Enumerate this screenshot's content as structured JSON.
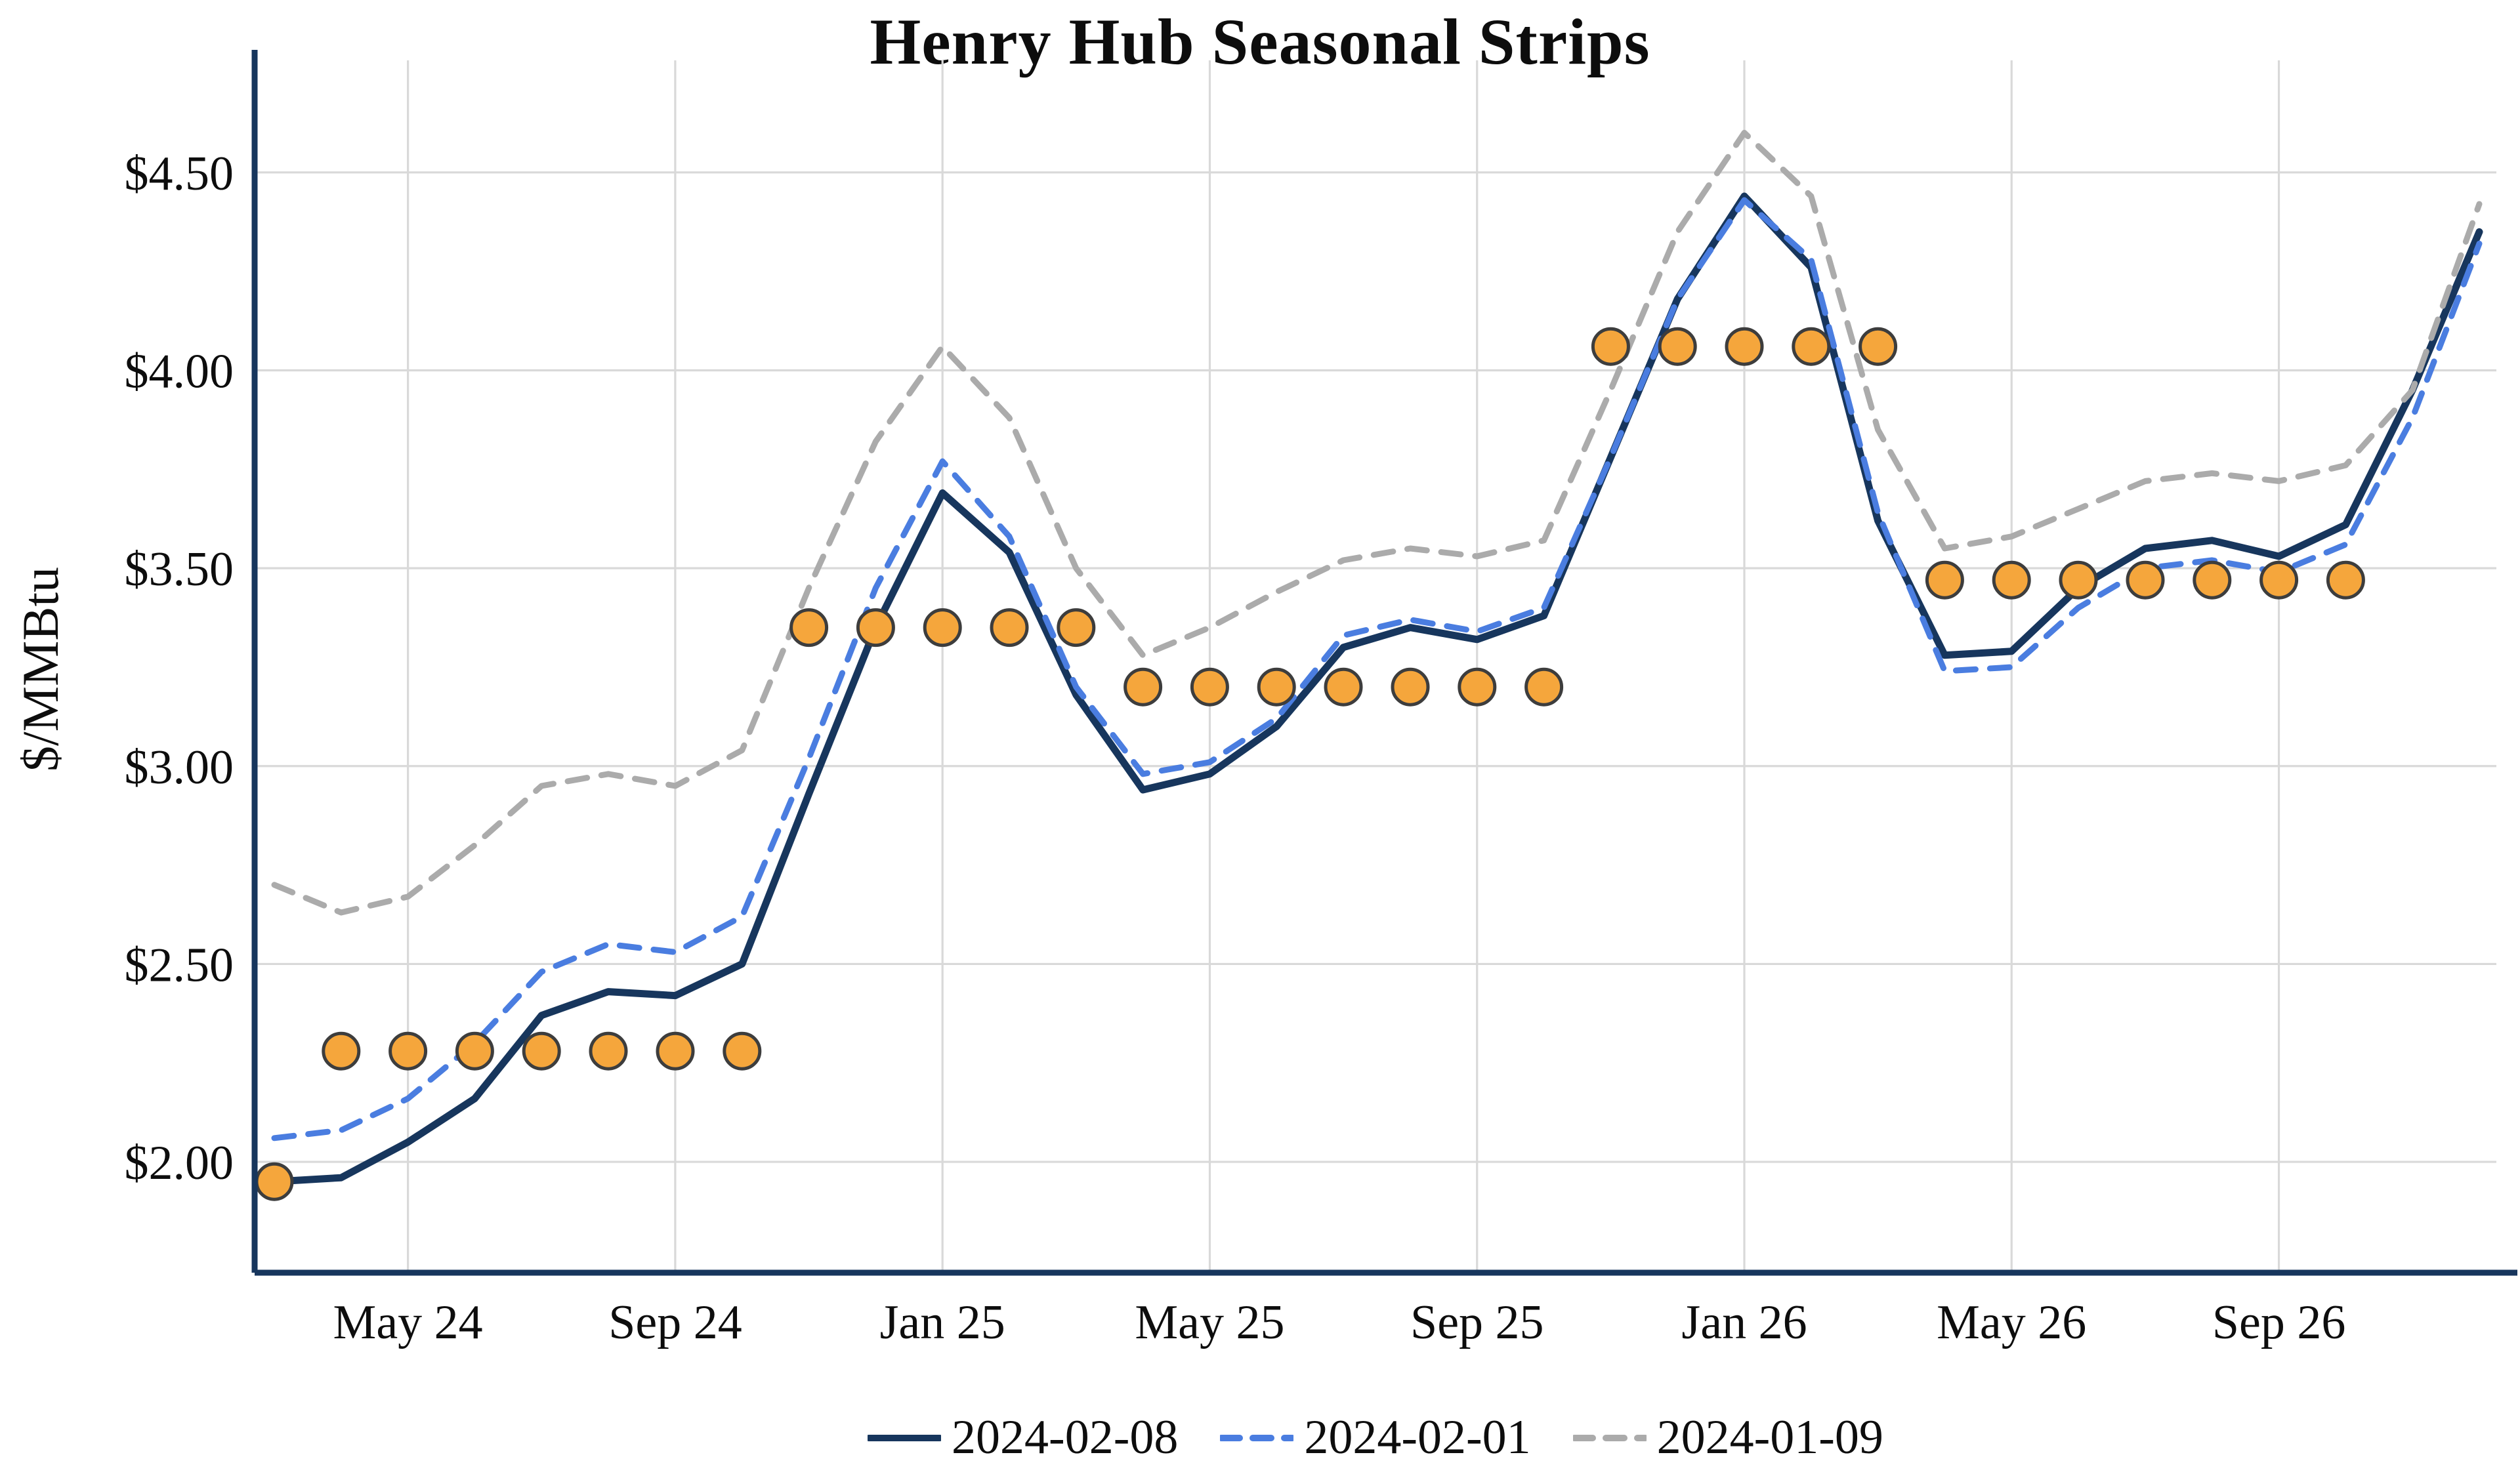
{
  "chart_data": {
    "type": "line",
    "title": "Henry Hub Seasonal Strips",
    "xlabel": "",
    "ylabel": "$/MMBtu",
    "ylim": [
      1.72,
      4.75
    ],
    "grid": true,
    "grid_color": "#d9d9d9",
    "axis_color": "#17365d",
    "background_color": "#ffffff",
    "legend_position": "bottom",
    "yticks": [
      2.0,
      2.5,
      3.0,
      3.5,
      4.0,
      4.5
    ],
    "ytick_labels": [
      "$2.00",
      "$2.50",
      "$3.00",
      "$3.50",
      "$4.00",
      "$4.50"
    ],
    "x": [
      "2024-03",
      "2024-04",
      "2024-05",
      "2024-06",
      "2024-07",
      "2024-08",
      "2024-09",
      "2024-10",
      "2024-11",
      "2024-12",
      "2025-01",
      "2025-02",
      "2025-03",
      "2025-04",
      "2025-05",
      "2025-06",
      "2025-07",
      "2025-08",
      "2025-09",
      "2025-10",
      "2025-11",
      "2025-12",
      "2026-01",
      "2026-02",
      "2026-03",
      "2026-04",
      "2026-05",
      "2026-06",
      "2026-07",
      "2026-08",
      "2026-09",
      "2026-10",
      "2026-11",
      "2026-12"
    ],
    "xtick_indices": [
      2,
      6,
      10,
      14,
      18,
      22,
      26,
      30
    ],
    "xtick_labels": [
      "May 24",
      "Sep 24",
      "Jan 25",
      "May 25",
      "Sep 25",
      "Jan 26",
      "May 26",
      "Sep 26"
    ],
    "series": [
      {
        "name": "2024-02-08",
        "style": "solid",
        "color": "#17365d",
        "width": 5.5,
        "values": [
          1.95,
          1.96,
          2.05,
          2.16,
          2.37,
          2.43,
          2.42,
          2.5,
          2.93,
          3.35,
          3.69,
          3.54,
          3.18,
          2.94,
          2.98,
          3.1,
          3.3,
          3.35,
          3.32,
          3.38,
          3.78,
          4.18,
          4.44,
          4.26,
          3.62,
          3.28,
          3.29,
          3.45,
          3.55,
          3.57,
          3.53,
          3.61,
          3.95,
          4.35
        ]
      },
      {
        "name": "2024-02-01",
        "style": "dashed",
        "color": "#4a7de0",
        "width": 4.5,
        "values": [
          2.06,
          2.08,
          2.16,
          2.3,
          2.48,
          2.55,
          2.53,
          2.62,
          3.02,
          3.45,
          3.77,
          3.58,
          3.2,
          2.98,
          3.01,
          3.12,
          3.33,
          3.37,
          3.34,
          3.4,
          3.78,
          4.18,
          4.43,
          4.28,
          3.64,
          3.24,
          3.25,
          3.4,
          3.5,
          3.52,
          3.49,
          3.56,
          3.88,
          4.32
        ]
      },
      {
        "name": "2024-01-09",
        "style": "dashed",
        "color": "#ababab",
        "width": 4.5,
        "values": [
          2.7,
          2.63,
          2.67,
          2.8,
          2.95,
          2.98,
          2.95,
          3.04,
          3.45,
          3.82,
          4.06,
          3.88,
          3.5,
          3.28,
          3.35,
          3.44,
          3.52,
          3.55,
          3.53,
          3.57,
          3.95,
          4.35,
          4.6,
          4.44,
          3.85,
          3.55,
          3.58,
          3.65,
          3.72,
          3.74,
          3.72,
          3.76,
          3.95,
          4.42
        ]
      }
    ],
    "markers": {
      "name": "seasonal-strip-marker",
      "color": "#f5a63c",
      "edge_color": "#3d3d3d",
      "points": [
        {
          "x": "2024-03",
          "y": 1.95
        },
        {
          "x": "2024-04",
          "y": 2.28
        },
        {
          "x": "2024-05",
          "y": 2.28
        },
        {
          "x": "2024-06",
          "y": 2.28
        },
        {
          "x": "2024-07",
          "y": 2.28
        },
        {
          "x": "2024-08",
          "y": 2.28
        },
        {
          "x": "2024-09",
          "y": 2.28
        },
        {
          "x": "2024-10",
          "y": 2.28
        },
        {
          "x": "2024-11",
          "y": 3.35
        },
        {
          "x": "2024-12",
          "y": 3.35
        },
        {
          "x": "2025-01",
          "y": 3.35
        },
        {
          "x": "2025-02",
          "y": 3.35
        },
        {
          "x": "2025-03",
          "y": 3.35
        },
        {
          "x": "2025-04",
          "y": 3.2
        },
        {
          "x": "2025-05",
          "y": 3.2
        },
        {
          "x": "2025-06",
          "y": 3.2
        },
        {
          "x": "2025-07",
          "y": 3.2
        },
        {
          "x": "2025-08",
          "y": 3.2
        },
        {
          "x": "2025-09",
          "y": 3.2
        },
        {
          "x": "2025-10",
          "y": 3.2
        },
        {
          "x": "2025-11",
          "y": 4.06
        },
        {
          "x": "2025-12",
          "y": 4.06
        },
        {
          "x": "2026-01",
          "y": 4.06
        },
        {
          "x": "2026-02",
          "y": 4.06
        },
        {
          "x": "2026-03",
          "y": 4.06
        },
        {
          "x": "2026-04",
          "y": 3.47
        },
        {
          "x": "2026-05",
          "y": 3.47
        },
        {
          "x": "2026-06",
          "y": 3.47
        },
        {
          "x": "2026-07",
          "y": 3.47
        },
        {
          "x": "2026-08",
          "y": 3.47
        },
        {
          "x": "2026-09",
          "y": 3.47
        },
        {
          "x": "2026-10",
          "y": 3.47
        }
      ]
    }
  }
}
